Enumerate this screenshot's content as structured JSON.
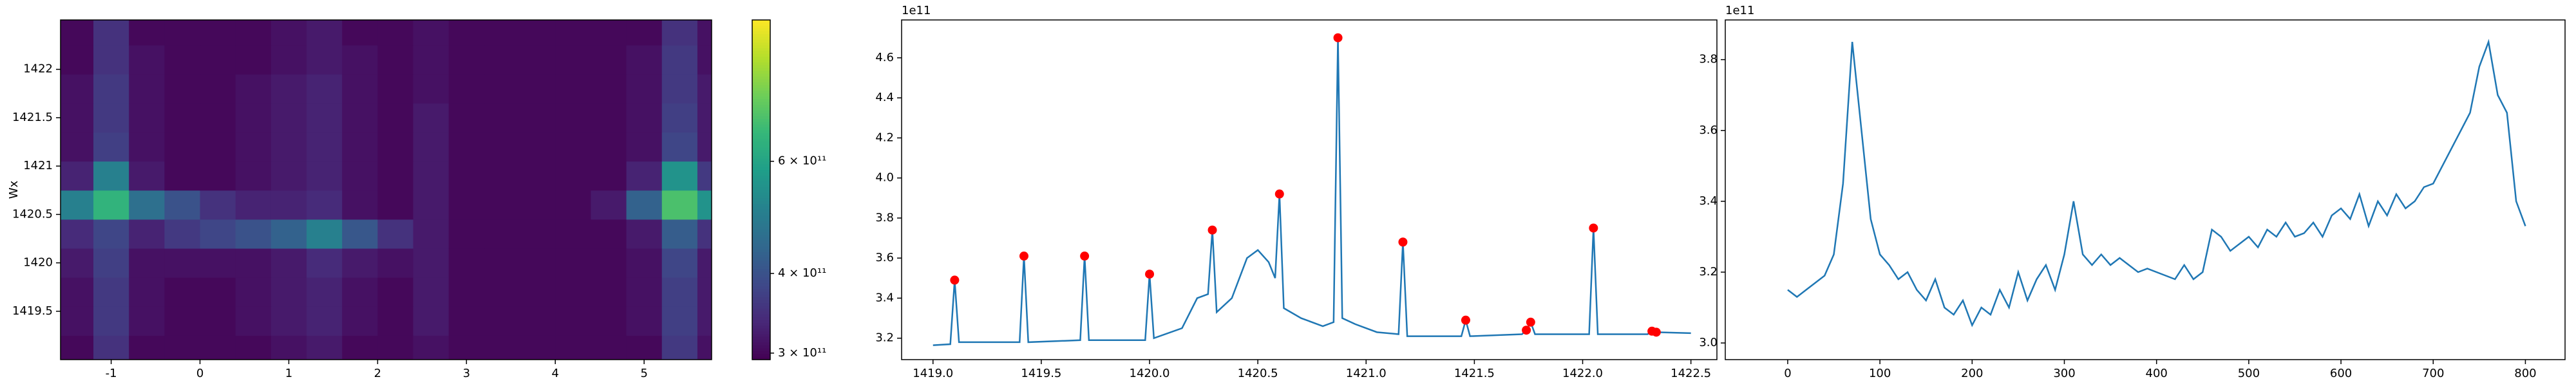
{
  "chart_data": [
    {
      "type": "heatmap",
      "ylabel": "Wx",
      "xlim": [
        -1.57,
        5.76
      ],
      "ylim": [
        1419.0,
        1422.51
      ],
      "xticks": [
        -1,
        0,
        1,
        2,
        3,
        4,
        5
      ],
      "yticks": [
        1419.5,
        1420.0,
        1420.5,
        1421.0,
        1421.5,
        1422.0
      ],
      "x": [
        -1.4,
        -1.0,
        -0.6,
        -0.2,
        0.2,
        0.6,
        1.0,
        1.4,
        1.8,
        2.2,
        2.6,
        3.0,
        3.4,
        3.8,
        4.2,
        4.6,
        5.0,
        5.4,
        5.8
      ],
      "y": [
        1419.1,
        1419.4,
        1419.7,
        1420.0,
        1420.3,
        1420.6,
        1420.9,
        1421.2,
        1421.5,
        1421.8,
        1422.1,
        1422.4
      ],
      "z": [
        [
          300000000000.0,
          350000000000.0,
          300000000000.0,
          300000000000.0,
          300000000000.0,
          300000000000.0,
          310000000000.0,
          320000000000.0,
          300000000000.0,
          300000000000.0,
          310000000000.0,
          300000000000.0,
          300000000000.0,
          300000000000.0,
          300000000000.0,
          300000000000.0,
          300000000000.0,
          360000000000.0,
          310000000000.0
        ],
        [
          310000000000.0,
          360000000000.0,
          310000000000.0,
          300000000000.0,
          300000000000.0,
          310000000000.0,
          320000000000.0,
          330000000000.0,
          310000000000.0,
          300000000000.0,
          320000000000.0,
          300000000000.0,
          300000000000.0,
          300000000000.0,
          300000000000.0,
          300000000000.0,
          310000000000.0,
          370000000000.0,
          320000000000.0
        ],
        [
          310000000000.0,
          360000000000.0,
          310000000000.0,
          300000000000.0,
          300000000000.0,
          310000000000.0,
          320000000000.0,
          330000000000.0,
          310000000000.0,
          300000000000.0,
          320000000000.0,
          300000000000.0,
          300000000000.0,
          300000000000.0,
          300000000000.0,
          300000000000.0,
          310000000000.0,
          370000000000.0,
          320000000000.0
        ],
        [
          320000000000.0,
          370000000000.0,
          310000000000.0,
          310000000000.0,
          310000000000.0,
          310000000000.0,
          320000000000.0,
          340000000000.0,
          320000000000.0,
          310000000000.0,
          320000000000.0,
          300000000000.0,
          300000000000.0,
          300000000000.0,
          300000000000.0,
          300000000000.0,
          310000000000.0,
          380000000000.0,
          320000000000.0
        ],
        [
          340000000000.0,
          380000000000.0,
          330000000000.0,
          360000000000.0,
          380000000000.0,
          400000000000.0,
          430000000000.0,
          500000000000.0,
          410000000000.0,
          350000000000.0,
          320000000000.0,
          300000000000.0,
          300000000000.0,
          300000000000.0,
          300000000000.0,
          300000000000.0,
          320000000000.0,
          420000000000.0,
          350000000000.0
        ],
        [
          500000000000.0,
          650000000000.0,
          460000000000.0,
          400000000000.0,
          350000000000.0,
          330000000000.0,
          330000000000.0,
          340000000000.0,
          310000000000.0,
          300000000000.0,
          320000000000.0,
          300000000000.0,
          300000000000.0,
          300000000000.0,
          300000000000.0,
          320000000000.0,
          430000000000.0,
          700000000000.0,
          550000000000.0
        ],
        [
          330000000000.0,
          500000000000.0,
          320000000000.0,
          300000000000.0,
          300000000000.0,
          310000000000.0,
          320000000000.0,
          330000000000.0,
          310000000000.0,
          300000000000.0,
          320000000000.0,
          300000000000.0,
          300000000000.0,
          300000000000.0,
          300000000000.0,
          300000000000.0,
          330000000000.0,
          550000000000.0,
          360000000000.0
        ],
        [
          310000000000.0,
          370000000000.0,
          310000000000.0,
          300000000000.0,
          300000000000.0,
          310000000000.0,
          320000000000.0,
          330000000000.0,
          310000000000.0,
          300000000000.0,
          320000000000.0,
          300000000000.0,
          300000000000.0,
          300000000000.0,
          300000000000.0,
          300000000000.0,
          310000000000.0,
          380000000000.0,
          320000000000.0
        ],
        [
          310000000000.0,
          360000000000.0,
          310000000000.0,
          300000000000.0,
          300000000000.0,
          310000000000.0,
          320000000000.0,
          330000000000.0,
          310000000000.0,
          300000000000.0,
          320000000000.0,
          300000000000.0,
          300000000000.0,
          300000000000.0,
          300000000000.0,
          300000000000.0,
          310000000000.0,
          370000000000.0,
          320000000000.0
        ],
        [
          310000000000.0,
          360000000000.0,
          310000000000.0,
          300000000000.0,
          300000000000.0,
          310000000000.0,
          320000000000.0,
          330000000000.0,
          310000000000.0,
          300000000000.0,
          310000000000.0,
          300000000000.0,
          300000000000.0,
          300000000000.0,
          300000000000.0,
          300000000000.0,
          310000000000.0,
          360000000000.0,
          320000000000.0
        ],
        [
          300000000000.0,
          350000000000.0,
          310000000000.0,
          300000000000.0,
          300000000000.0,
          300000000000.0,
          310000000000.0,
          320000000000.0,
          310000000000.0,
          300000000000.0,
          310000000000.0,
          300000000000.0,
          300000000000.0,
          300000000000.0,
          300000000000.0,
          300000000000.0,
          310000000000.0,
          360000000000.0,
          310000000000.0
        ],
        [
          300000000000.0,
          350000000000.0,
          300000000000.0,
          300000000000.0,
          300000000000.0,
          300000000000.0,
          310000000000.0,
          320000000000.0,
          300000000000.0,
          300000000000.0,
          310000000000.0,
          300000000000.0,
          300000000000.0,
          300000000000.0,
          300000000000.0,
          300000000000.0,
          300000000000.0,
          350000000000.0,
          310000000000.0
        ]
      ],
      "colormap": "viridis",
      "color_scale": "log",
      "clim": [
        293000000000.0,
        1000000000000.0
      ],
      "colorbar_ticks": [
        {
          "value": 300000000000.0,
          "label": "3 × 10¹¹"
        },
        {
          "value": 400000000000.0,
          "label": "4 × 10¹¹"
        },
        {
          "value": 600000000000.0,
          "label": "6 × 10¹¹"
        }
      ]
    },
    {
      "type": "line",
      "offset_text": "1e11",
      "xlim": [
        1418.855,
        1422.62
      ],
      "ylim": [
        3.093,
        4.789
      ],
      "xticks": [
        {
          "value": 1419.0,
          "label": "1419.0"
        },
        1419.5,
        {
          "value": 1420.0,
          "label": "1420.0"
        },
        1420.5,
        {
          "value": 1421.0,
          "label": "1421.0"
        },
        1421.5,
        {
          "value": 1422.0,
          "label": "1422.0"
        },
        1422.5
      ],
      "yticks": [
        3.2,
        3.4,
        3.6,
        3.8,
        {
          "value": 4.0,
          "label": "4.0"
        },
        4.2,
        4.4,
        4.6
      ],
      "series": [
        {
          "style": "line",
          "color": "#1f77b4",
          "x": [
            1419.0,
            1419.08,
            1419.1,
            1419.12,
            1419.4,
            1419.42,
            1419.44,
            1419.68,
            1419.7,
            1419.72,
            1419.98,
            1420.0,
            1420.02,
            1420.15,
            1420.22,
            1420.27,
            1420.29,
            1420.31,
            1420.38,
            1420.45,
            1420.5,
            1420.55,
            1420.58,
            1420.6,
            1420.62,
            1420.7,
            1420.8,
            1420.85,
            1420.87,
            1420.89,
            1420.95,
            1421.05,
            1421.15,
            1421.17,
            1421.19,
            1421.44,
            1421.46,
            1421.48,
            1421.72,
            1421.74,
            1421.76,
            1421.78,
            1422.03,
            1422.05,
            1422.07,
            1422.3,
            1422.32,
            1422.34,
            1422.5
          ],
          "values": [
            3.165,
            3.17,
            3.49,
            3.18,
            3.18,
            3.61,
            3.18,
            3.19,
            3.61,
            3.19,
            3.19,
            3.52,
            3.2,
            3.25,
            3.4,
            3.42,
            3.74,
            3.33,
            3.4,
            3.6,
            3.64,
            3.58,
            3.5,
            3.92,
            3.35,
            3.3,
            3.26,
            3.28,
            4.7,
            3.3,
            3.27,
            3.23,
            3.22,
            3.68,
            3.21,
            3.21,
            3.29,
            3.21,
            3.22,
            3.24,
            3.28,
            3.22,
            3.22,
            3.75,
            3.22,
            3.22,
            3.235,
            3.23,
            3.225
          ]
        },
        {
          "style": "points",
          "color": "#ff0000",
          "x": [
            1419.1,
            1419.42,
            1419.7,
            1420.0,
            1420.29,
            1420.6,
            1420.87,
            1421.17,
            1421.46,
            1421.74,
            1421.76,
            1422.05,
            1422.32,
            1422.34
          ],
          "values": [
            3.49,
            3.61,
            3.61,
            3.52,
            3.74,
            3.92,
            4.7,
            3.68,
            3.29,
            3.24,
            3.28,
            3.75,
            3.235,
            3.23
          ]
        }
      ]
    },
    {
      "type": "line",
      "offset_text": "1e11",
      "xlim": [
        -67.7,
        843
      ],
      "ylim": [
        2.953,
        3.912
      ],
      "xticks": [
        0,
        100,
        200,
        300,
        400,
        500,
        600,
        700,
        800
      ],
      "yticks": [
        {
          "value": 3.0,
          "label": "3.0"
        },
        3.2,
        3.4,
        3.6,
        3.8
      ],
      "series": [
        {
          "style": "line",
          "color": "#1f77b4",
          "x": [
            0,
            10,
            20,
            30,
            40,
            50,
            60,
            70,
            80,
            90,
            100,
            110,
            120,
            130,
            140,
            150,
            160,
            170,
            180,
            190,
            200,
            210,
            220,
            230,
            240,
            250,
            260,
            270,
            280,
            290,
            300,
            310,
            320,
            330,
            340,
            350,
            360,
            370,
            380,
            390,
            400,
            410,
            420,
            430,
            440,
            450,
            460,
            470,
            480,
            490,
            500,
            510,
            520,
            530,
            540,
            550,
            560,
            570,
            580,
            590,
            600,
            610,
            620,
            630,
            640,
            650,
            660,
            670,
            680,
            690,
            700,
            710,
            720,
            730,
            740,
            750,
            760,
            770,
            780,
            790,
            800
          ],
          "values": [
            3.15,
            3.13,
            3.15,
            3.17,
            3.19,
            3.25,
            3.45,
            3.85,
            3.6,
            3.35,
            3.25,
            3.22,
            3.18,
            3.2,
            3.15,
            3.12,
            3.18,
            3.1,
            3.08,
            3.12,
            3.05,
            3.1,
            3.08,
            3.15,
            3.1,
            3.2,
            3.12,
            3.18,
            3.22,
            3.15,
            3.25,
            3.4,
            3.25,
            3.22,
            3.25,
            3.22,
            3.24,
            3.22,
            3.2,
            3.21,
            3.2,
            3.19,
            3.18,
            3.22,
            3.18,
            3.2,
            3.32,
            3.3,
            3.26,
            3.28,
            3.3,
            3.27,
            3.32,
            3.3,
            3.34,
            3.3,
            3.31,
            3.34,
            3.3,
            3.36,
            3.38,
            3.35,
            3.42,
            3.33,
            3.4,
            3.36,
            3.42,
            3.38,
            3.4,
            3.44,
            3.45,
            3.5,
            3.55,
            3.6,
            3.65,
            3.78,
            3.85,
            3.7,
            3.65,
            3.4,
            3.33
          ]
        }
      ]
    }
  ]
}
